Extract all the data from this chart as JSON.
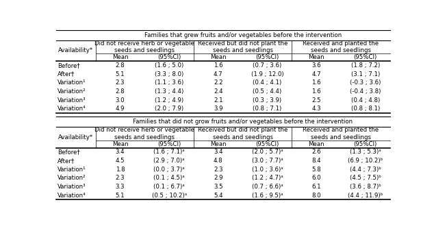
{
  "title_top": "Families that grew fruits and/or vegetables before the intervention",
  "title_bottom": "Families that did not grow fruits and/or vegetables before the intervention",
  "col_headers": [
    "Did not receive herb or vegetable\nseeds and seedlings",
    "Received but did not plant the\nseeds and seedlings",
    "Received and planted the\nseeds and seedlings"
  ],
  "sub_headers": [
    "Mean",
    "(95%CI)",
    "Mean",
    "(95%CI)",
    "Mean",
    "(95%CI)"
  ],
  "rows_top": [
    [
      "Before†",
      "2.8",
      "(1.6 ; 5.0)",
      "1.6",
      "(0.7 ; 3.6)",
      "3.6",
      "(1.8 ; 7.2)"
    ],
    [
      "After†",
      "5.1",
      "(3.3 ; 8.0)",
      "4.7",
      "(1.9 ; 12.0)",
      "4.7",
      "(3.1 ; 7.1)"
    ],
    [
      "Variation¹",
      "2.3",
      "(1.1 ; 3.6)",
      "2.2",
      "(0.4 ; 4.1)",
      "1.6",
      "(-0.3 ; 3.6)"
    ],
    [
      "Variation²",
      "2.8",
      "(1.3 ; 4.4)",
      "2.4",
      "(0.5 ; 4.4)",
      "1.6",
      "(-0.4 ; 3.8)"
    ],
    [
      "Variation³",
      "3.0",
      "(1.2 ; 4.9)",
      "2.1",
      "(0.3 ; 3.9)",
      "2.5",
      "(0.4 ; 4.8)"
    ],
    [
      "Variation⁴",
      "4.9",
      "(2.0 ; 7.9)",
      "3.9",
      "(0.8 ; 7.1)",
      "4.3",
      "(0.8 ; 8.1)"
    ]
  ],
  "rows_bottom": [
    [
      "Before†",
      "3.4",
      "(1.6 ; 7.1)ᵃ",
      "3.4",
      "(2.0 ; 5.7)ᵃ",
      "2.6",
      "(1.3 ; 5.3)ᵃ"
    ],
    [
      "After†",
      "4.5",
      "(2.9 ; 7.0)ᵃ",
      "4.8",
      "(3.0 ; 7.7)ᵃ",
      "8.4",
      "(6.9 ; 10.2)ᵇ"
    ],
    [
      "Variation¹",
      "1.8",
      "(0.0 ; 3.7)ᵃ",
      "2.3",
      "(1.0 ; 3.6)ᵃ",
      "5.8",
      "(4.4 ; 7.3)ᵇ"
    ],
    [
      "Variation²",
      "2.3",
      "(0.1 ; 4.5)ᵃ",
      "2.9",
      "(1.2 ; 4.7)ᵃ",
      "6.0",
      "(4.5 ; 7.5)ᵇ"
    ],
    [
      "Variation³",
      "3.3",
      "(0.1 ; 6.7)ᵃ",
      "3.5",
      "(0.7 ; 6.6)ᵃ",
      "6.1",
      "(3.6 ; 8.7)ᵇ"
    ],
    [
      "Variation⁴",
      "5.1",
      "(0.5 ; 10.2)ᵃ",
      "5.4",
      "(1.6 ; 9.5)ᵃ",
      "8.0",
      "(4.4 ; 11.9)ᵇ"
    ]
  ],
  "bg_color": "#ffffff",
  "text_color": "#000000",
  "font_size": 6.2
}
